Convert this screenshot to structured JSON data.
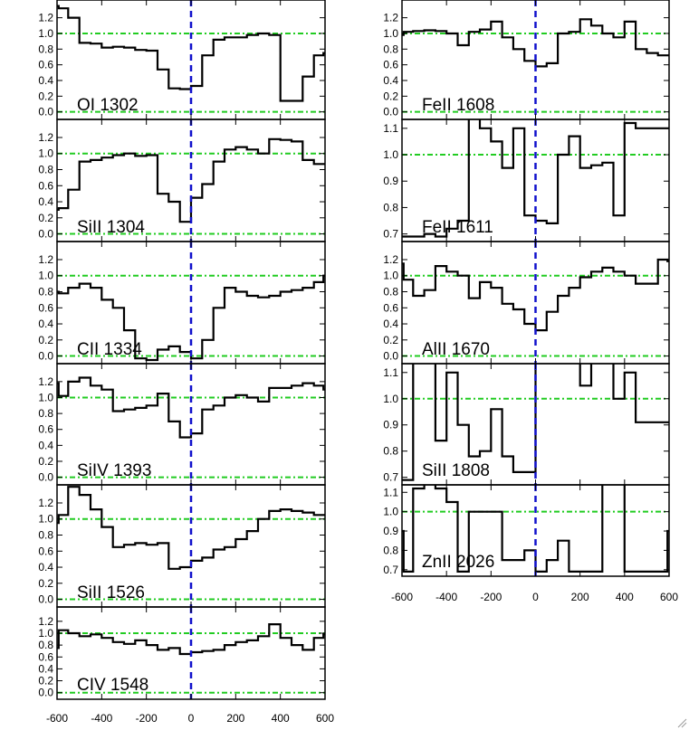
{
  "colors": {
    "spectrum": "#000000",
    "continuum_line": "#22cc22",
    "zero_velocity_line": "#1010cc",
    "frame": "#000000"
  },
  "xaxis": {
    "range": [
      -600,
      600
    ],
    "ticks": [
      -600,
      -400,
      -200,
      0,
      200,
      400,
      600
    ],
    "tick_labels": [
      "-600",
      "-400",
      "-200",
      "0",
      "200",
      "400",
      "600"
    ]
  },
  "chart_data": [
    {
      "type": "line",
      "step": true,
      "label": "OI 1302",
      "column": "left",
      "ylim": [
        -0.05,
        1.38
      ],
      "yticks": [
        0.0,
        0.2,
        0.4,
        0.6,
        0.8,
        1.0,
        1.2
      ],
      "ytick_labels": [
        "0.0",
        "0.2",
        "0.4",
        "0.6",
        "0.8",
        "1.0",
        "1.2"
      ],
      "hlines": [
        0.0,
        1.0
      ],
      "x": [
        -610,
        -575,
        -525,
        -475,
        -425,
        -375,
        -325,
        -275,
        -225,
        -175,
        -125,
        -75,
        -25,
        25,
        75,
        125,
        175,
        225,
        275,
        325,
        375,
        425,
        475,
        525,
        575,
        610
      ],
      "y": [
        1.35,
        1.32,
        1.2,
        0.88,
        0.87,
        0.82,
        0.83,
        0.82,
        0.79,
        0.78,
        0.54,
        0.3,
        0.29,
        0.33,
        0.72,
        0.92,
        0.95,
        0.95,
        0.98,
        1.0,
        0.98,
        0.14,
        0.14,
        0.45,
        0.72,
        0.75
      ]
    },
    {
      "type": "line",
      "step": true,
      "label": "SiII 1304",
      "column": "left",
      "ylim": [
        -0.05,
        1.38
      ],
      "yticks": [
        0.0,
        0.2,
        0.4,
        0.6,
        0.8,
        1.0,
        1.2
      ],
      "ytick_labels": [
        "0.0",
        "0.2",
        "0.4",
        "0.6",
        "0.8",
        "1.0",
        "1.2"
      ],
      "hlines": [
        0.0,
        1.0
      ],
      "x": [
        -610,
        -575,
        -525,
        -475,
        -425,
        -375,
        -325,
        -275,
        -225,
        -175,
        -125,
        -75,
        -25,
        25,
        75,
        125,
        175,
        225,
        275,
        325,
        375,
        425,
        475,
        525,
        575,
        610
      ],
      "y": [
        0.3,
        0.32,
        0.55,
        0.9,
        0.92,
        0.95,
        0.98,
        1.0,
        0.97,
        0.98,
        0.5,
        0.4,
        0.15,
        0.45,
        0.62,
        0.9,
        1.05,
        1.08,
        1.05,
        1.0,
        1.18,
        1.17,
        1.15,
        0.92,
        0.87,
        0.87
      ]
    },
    {
      "type": "line",
      "step": true,
      "label": "CII 1334",
      "column": "left",
      "ylim": [
        -0.05,
        1.38
      ],
      "yticks": [
        0.0,
        0.2,
        0.4,
        0.6,
        0.8,
        1.0,
        1.2
      ],
      "ytick_labels": [
        "0.0",
        "0.2",
        "0.4",
        "0.6",
        "0.8",
        "1.0",
        "1.2"
      ],
      "hlines": [
        0.0,
        1.0
      ],
      "x": [
        -610,
        -575,
        -525,
        -475,
        -425,
        -375,
        -325,
        -275,
        -225,
        -175,
        -125,
        -75,
        -25,
        25,
        75,
        125,
        175,
        225,
        275,
        325,
        375,
        425,
        475,
        525,
        575,
        610
      ],
      "y": [
        0.8,
        0.78,
        0.85,
        0.9,
        0.85,
        0.7,
        0.6,
        0.32,
        -0.03,
        -0.05,
        0.08,
        0.12,
        0.05,
        -0.03,
        0.2,
        0.6,
        0.85,
        0.8,
        0.75,
        0.73,
        0.75,
        0.8,
        0.82,
        0.85,
        0.92,
        1.0
      ]
    },
    {
      "type": "line",
      "step": true,
      "label": "SiIV 1393",
      "column": "left",
      "ylim": [
        -0.05,
        1.38
      ],
      "yticks": [
        0.0,
        0.2,
        0.4,
        0.6,
        0.8,
        1.0,
        1.2
      ],
      "ytick_labels": [
        "0.0",
        "0.2",
        "0.4",
        "0.6",
        "0.8",
        "1.0",
        "1.2"
      ],
      "hlines": [
        0.0,
        1.0
      ],
      "x": [
        -610,
        -575,
        -525,
        -475,
        -425,
        -375,
        -325,
        -275,
        -225,
        -175,
        -125,
        -75,
        -25,
        25,
        75,
        125,
        175,
        225,
        275,
        325,
        375,
        425,
        475,
        525,
        575,
        610
      ],
      "y": [
        1.18,
        1.02,
        1.2,
        1.25,
        1.15,
        1.1,
        0.83,
        0.85,
        0.87,
        0.9,
        1.05,
        0.7,
        0.5,
        0.55,
        0.85,
        0.9,
        1.0,
        1.03,
        1.0,
        0.95,
        1.12,
        1.12,
        1.15,
        1.18,
        1.15,
        1.1
      ]
    },
    {
      "type": "line",
      "step": true,
      "label": "SiII 1526",
      "column": "left",
      "ylim": [
        -0.05,
        1.38
      ],
      "yticks": [
        0.0,
        0.2,
        0.4,
        0.6,
        0.8,
        1.0,
        1.2
      ],
      "ytick_labels": [
        "0.0",
        "0.2",
        "0.4",
        "0.6",
        "0.8",
        "1.0",
        "1.2"
      ],
      "hlines": [
        0.0,
        1.0
      ],
      "x": [
        -610,
        -575,
        -525,
        -475,
        -425,
        -375,
        -325,
        -275,
        -225,
        -175,
        -125,
        -75,
        -25,
        25,
        75,
        125,
        175,
        225,
        275,
        325,
        375,
        425,
        475,
        525,
        575,
        610
      ],
      "y": [
        0.95,
        1.05,
        1.4,
        1.3,
        1.12,
        0.9,
        0.65,
        0.68,
        0.7,
        0.68,
        0.7,
        0.38,
        0.4,
        0.48,
        0.52,
        0.62,
        0.65,
        0.75,
        0.85,
        1.0,
        1.1,
        1.12,
        1.1,
        1.08,
        1.05,
        1.05
      ]
    },
    {
      "type": "line",
      "step": true,
      "label": "CIV 1548",
      "column": "left",
      "ylim": [
        -0.05,
        1.38
      ],
      "yticks": [
        0.0,
        0.2,
        0.4,
        0.6,
        0.8,
        1.0,
        1.2
      ],
      "ytick_labels": [
        "0.0",
        "0.2",
        "0.4",
        "0.6",
        "0.8",
        "1.0",
        "1.2"
      ],
      "hlines": [
        0.0,
        1.0
      ],
      "x": [
        -610,
        -575,
        -525,
        -475,
        -425,
        -375,
        -325,
        -275,
        -225,
        -175,
        -125,
        -75,
        -25,
        25,
        75,
        125,
        175,
        225,
        275,
        325,
        375,
        425,
        475,
        525,
        575,
        610
      ],
      "y": [
        0.75,
        1.05,
        1.0,
        0.95,
        0.98,
        0.92,
        0.85,
        0.82,
        0.88,
        0.8,
        0.72,
        0.75,
        0.65,
        0.68,
        0.7,
        0.72,
        0.8,
        0.85,
        0.88,
        0.95,
        1.15,
        0.92,
        0.8,
        0.72,
        0.92,
        0.98
      ]
    },
    {
      "type": "line",
      "step": true,
      "label": "FeII 1608",
      "column": "right",
      "ylim": [
        -0.05,
        1.38
      ],
      "yticks": [
        0.0,
        0.2,
        0.4,
        0.6,
        0.8,
        1.0,
        1.2
      ],
      "ytick_labels": [
        "0.0",
        "0.2",
        "0.4",
        "0.6",
        "0.8",
        "1.0",
        "1.2"
      ],
      "hlines": [
        0.0,
        1.0
      ],
      "x": [
        -610,
        -575,
        -525,
        -475,
        -425,
        -375,
        -325,
        -275,
        -225,
        -175,
        -125,
        -75,
        -25,
        25,
        75,
        125,
        175,
        225,
        275,
        325,
        375,
        425,
        475,
        525,
        575,
        610
      ],
      "y": [
        0.98,
        1.02,
        1.03,
        1.04,
        1.03,
        1.0,
        0.85,
        1.02,
        1.05,
        1.15,
        0.95,
        0.8,
        0.65,
        0.58,
        0.62,
        1.0,
        1.02,
        1.18,
        1.1,
        1.0,
        0.95,
        1.15,
        0.8,
        0.75,
        0.72,
        0.72
      ]
    },
    {
      "type": "line",
      "step": true,
      "label": "FeII 1611",
      "column": "right",
      "ylim": [
        0.685,
        1.12
      ],
      "yticks": [
        0.7,
        0.8,
        0.9,
        1.0,
        1.1
      ],
      "ytick_labels": [
        "0.7",
        "0.8",
        "0.9",
        "1.0",
        "1.1"
      ],
      "hlines": [
        1.0
      ],
      "x": [
        -610,
        -575,
        -525,
        -475,
        -425,
        -375,
        -325,
        -275,
        -225,
        -175,
        -125,
        -75,
        -25,
        25,
        75,
        125,
        175,
        225,
        275,
        325,
        375,
        425,
        475,
        525,
        575,
        610
      ],
      "y": [
        0.69,
        0.69,
        0.69,
        0.7,
        0.69,
        0.72,
        0.75,
        1.15,
        1.1,
        1.05,
        0.95,
        1.1,
        0.77,
        0.75,
        0.74,
        1.0,
        1.07,
        0.95,
        0.96,
        0.97,
        0.77,
        1.12,
        1.1,
        1.1,
        1.1,
        1.1
      ]
    },
    {
      "type": "line",
      "step": true,
      "label": "AlII 1670",
      "column": "right",
      "ylim": [
        -0.05,
        1.38
      ],
      "yticks": [
        0.0,
        0.2,
        0.4,
        0.6,
        0.8,
        1.0,
        1.2
      ],
      "ytick_labels": [
        "0.0",
        "0.2",
        "0.4",
        "0.6",
        "0.8",
        "1.0",
        "1.2"
      ],
      "hlines": [
        0.0,
        1.0
      ],
      "x": [
        -610,
        -575,
        -525,
        -475,
        -425,
        -375,
        -325,
        -275,
        -225,
        -175,
        -125,
        -75,
        -25,
        25,
        75,
        125,
        175,
        225,
        275,
        325,
        375,
        425,
        475,
        525,
        575,
        610
      ],
      "y": [
        1.15,
        0.95,
        0.75,
        0.82,
        1.12,
        1.05,
        1.0,
        0.72,
        0.92,
        0.85,
        0.65,
        0.58,
        0.4,
        0.32,
        0.55,
        0.75,
        0.85,
        0.98,
        1.05,
        1.1,
        1.05,
        1.0,
        0.9,
        0.9,
        1.2,
        1.18
      ]
    },
    {
      "type": "line",
      "step": true,
      "label": "SiII 1808",
      "column": "right",
      "ylim": [
        0.685,
        1.12
      ],
      "yticks": [
        0.7,
        0.8,
        0.9,
        1.0,
        1.1
      ],
      "ytick_labels": [
        "0.7",
        "0.8",
        "0.9",
        "1.0",
        "1.1"
      ],
      "hlines": [
        1.0
      ],
      "x": [
        -610,
        -575,
        -525,
        -475,
        -425,
        -375,
        -325,
        -275,
        -225,
        -175,
        -125,
        -75,
        -25,
        25,
        75,
        125,
        175,
        225,
        275,
        325,
        375,
        425,
        475,
        525,
        575,
        610
      ],
      "y": [
        0.69,
        0.69,
        1.15,
        1.15,
        0.84,
        1.1,
        0.9,
        0.78,
        0.8,
        0.96,
        0.78,
        0.72,
        0.72,
        1.15,
        1.15,
        1.15,
        1.15,
        1.05,
        1.15,
        1.15,
        1.0,
        1.1,
        0.91,
        0.91,
        0.91,
        0.91
      ]
    },
    {
      "type": "line",
      "step": true,
      "label": "ZnII 2026",
      "column": "right",
      "ylim": [
        0.685,
        1.12
      ],
      "yticks": [
        0.7,
        0.8,
        0.9,
        1.0,
        1.1
      ],
      "ytick_labels": [
        "0.7",
        "0.8",
        "0.9",
        "1.0",
        "1.1"
      ],
      "hlines": [
        1.0
      ],
      "x": [
        -610,
        -575,
        -525,
        -475,
        -425,
        -375,
        -325,
        -275,
        -225,
        -175,
        -125,
        -75,
        -25,
        25,
        75,
        125,
        175,
        225,
        275,
        325,
        375,
        425,
        475,
        525,
        575,
        610
      ],
      "y": [
        0.9,
        0.69,
        1.12,
        1.15,
        1.12,
        1.05,
        0.69,
        1.0,
        1.0,
        1.0,
        0.75,
        0.75,
        0.8,
        0.69,
        0.75,
        0.85,
        0.69,
        0.69,
        0.69,
        1.15,
        1.15,
        0.69,
        0.69,
        0.69,
        0.69,
        0.9
      ]
    }
  ]
}
